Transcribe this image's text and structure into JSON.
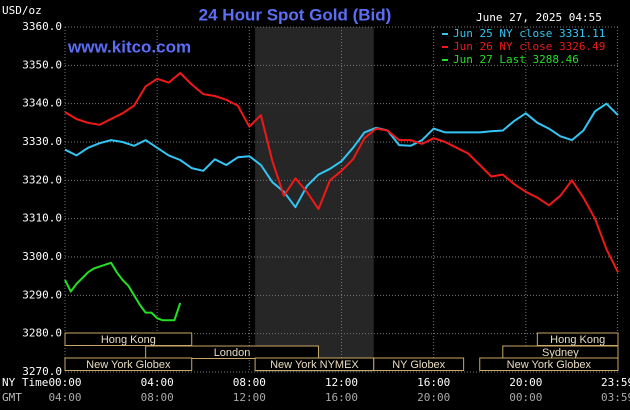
{
  "chart_data": {
    "type": "line",
    "title": "24 Hour Spot Gold (Bid)",
    "timestamp": "June 27, 2025 04:55",
    "source": "www.kitco.com",
    "y_unit": "USD/oz",
    "x_row_label": "NY Time",
    "x2_row_label": "GMT",
    "xlim": [
      0,
      24
    ],
    "ylim": [
      3270,
      3360
    ],
    "grid": true,
    "yticks": [
      {
        "value": 3360,
        "label": "3360.0"
      },
      {
        "value": 3350,
        "label": "3350.0"
      },
      {
        "value": 3340,
        "label": "3340.0"
      },
      {
        "value": 3330,
        "label": "3330.0"
      },
      {
        "value": 3320,
        "label": "3320.0"
      },
      {
        "value": 3310,
        "label": "3310.0"
      },
      {
        "value": 3300,
        "label": "3300.0"
      },
      {
        "value": 3290,
        "label": "3290.0"
      },
      {
        "value": 3280,
        "label": "3280.0"
      },
      {
        "value": 3270,
        "label": "3270.0"
      }
    ],
    "xticks": [
      {
        "value": 0,
        "label": "00:00"
      },
      {
        "value": 4,
        "label": "04:00"
      },
      {
        "value": 8,
        "label": "08:00"
      },
      {
        "value": 12,
        "label": "12:00"
      },
      {
        "value": 16,
        "label": "16:00"
      },
      {
        "value": 20,
        "label": "20:00"
      },
      {
        "value": 23.98,
        "label": "23:59"
      }
    ],
    "xticks_gmt": [
      {
        "value": 0,
        "label": "04:00"
      },
      {
        "value": 4,
        "label": "08:00"
      },
      {
        "value": 8,
        "label": "12:00"
      },
      {
        "value": 12,
        "label": "16:00"
      },
      {
        "value": 16,
        "label": "20:00"
      },
      {
        "value": 20,
        "label": "00:00"
      },
      {
        "value": 23.98,
        "label": "03:59"
      }
    ],
    "sessions": [
      {
        "label": "Hong Kong",
        "start": 0,
        "end": 5.5,
        "row": 0
      },
      {
        "label": "London",
        "start": 3.5,
        "end": 11,
        "row": 1
      },
      {
        "label": "New York Globex",
        "start": 0,
        "end": 5.5,
        "row": 2
      },
      {
        "label": "New York NYMEX",
        "start": 8.25,
        "end": 13.4,
        "row": 2
      },
      {
        "label": "NY Globex",
        "start": 13.4,
        "end": 17.3,
        "row": 2
      },
      {
        "label": "Hong Kong",
        "start": 20.5,
        "end": 24,
        "row": 0
      },
      {
        "label": "Sydney",
        "start": 19,
        "end": 24,
        "row": 1
      },
      {
        "label": "New York Globex",
        "start": 18,
        "end": 24,
        "row": 2
      }
    ],
    "series": [
      {
        "name": "Jun 25 NY close 3331.11",
        "color": "#33c6f5",
        "x": [
          0,
          0.5,
          1,
          1.5,
          2,
          2.5,
          3,
          3.5,
          4,
          4.5,
          5,
          5.5,
          6,
          6.5,
          7,
          7.5,
          8,
          8.5,
          9,
          9.5,
          10,
          10.5,
          11,
          11.5,
          12,
          12.5,
          13,
          13.5,
          14,
          14.5,
          15,
          15.5,
          16,
          16.5,
          17,
          17.5,
          18,
          18.5,
          19,
          19.5,
          20,
          20.5,
          21,
          21.5,
          22,
          22.5,
          23,
          23.5,
          24
        ],
        "values": [
          3328,
          3326.5,
          3328.5,
          3329.7,
          3330.5,
          3330,
          3329,
          3330.5,
          3328.5,
          3326.5,
          3325.3,
          3323.2,
          3322.5,
          3325.5,
          3324,
          3326,
          3326.3,
          3324,
          3319.5,
          3317,
          3313,
          3318.5,
          3321.5,
          3323,
          3325,
          3328.5,
          3332.5,
          3333.7,
          3333,
          3329.2,
          3329,
          3330.5,
          3333.5,
          3332.5,
          3332.5,
          3332.5,
          3332.5,
          3332.8,
          3333,
          3335.5,
          3337.5,
          3335,
          3333.5,
          3331.5,
          3330.5,
          3333,
          3338,
          3340,
          3337
        ]
      },
      {
        "name": "Jun 26 NY close 3326.49",
        "color": "#f01818",
        "x": [
          0,
          0.5,
          1,
          1.5,
          2,
          2.5,
          3,
          3.5,
          4,
          4.5,
          5,
          5.5,
          6,
          6.5,
          7,
          7.5,
          8,
          8.5,
          9,
          9.5,
          10,
          10.5,
          11,
          11.5,
          12,
          12.5,
          13,
          13.5,
          14,
          14.5,
          15,
          15.5,
          16,
          16.5,
          17,
          17.5,
          18,
          18.5,
          19,
          19.5,
          20,
          20.5,
          21,
          21.5,
          22,
          22.5,
          23,
          23.5,
          24
        ],
        "values": [
          3337.8,
          3336,
          3335,
          3334.5,
          3336,
          3337.5,
          3339.5,
          3344.5,
          3346.5,
          3345.5,
          3348,
          3345,
          3342.5,
          3342,
          3341,
          3339.5,
          3334,
          3337,
          3325,
          3316,
          3320.5,
          3317,
          3312.5,
          3320,
          3322.5,
          3325.5,
          3331,
          3333.5,
          3333,
          3330.5,
          3330.5,
          3329.5,
          3331,
          3330,
          3328.5,
          3327,
          3324,
          3321,
          3321.5,
          3319,
          3317,
          3315.5,
          3313.5,
          3316,
          3320,
          3315.5,
          3310,
          3302,
          3296
        ]
      },
      {
        "name": "Jun 27 Last 3288.46",
        "color": "#22e022",
        "x": [
          0,
          0.25,
          0.5,
          0.75,
          1,
          1.25,
          1.5,
          1.75,
          2,
          2.25,
          2.5,
          2.75,
          3,
          3.25,
          3.5,
          3.75,
          4,
          4.25,
          4.5,
          4.75,
          5
        ],
        "values": [
          3294,
          3291,
          3293,
          3294.5,
          3296,
          3297,
          3297.5,
          3298,
          3298.5,
          3296,
          3294,
          3292.5,
          3290,
          3287.5,
          3285.5,
          3285.5,
          3284,
          3283.5,
          3283.5,
          3283.5,
          3288
        ]
      }
    ]
  }
}
